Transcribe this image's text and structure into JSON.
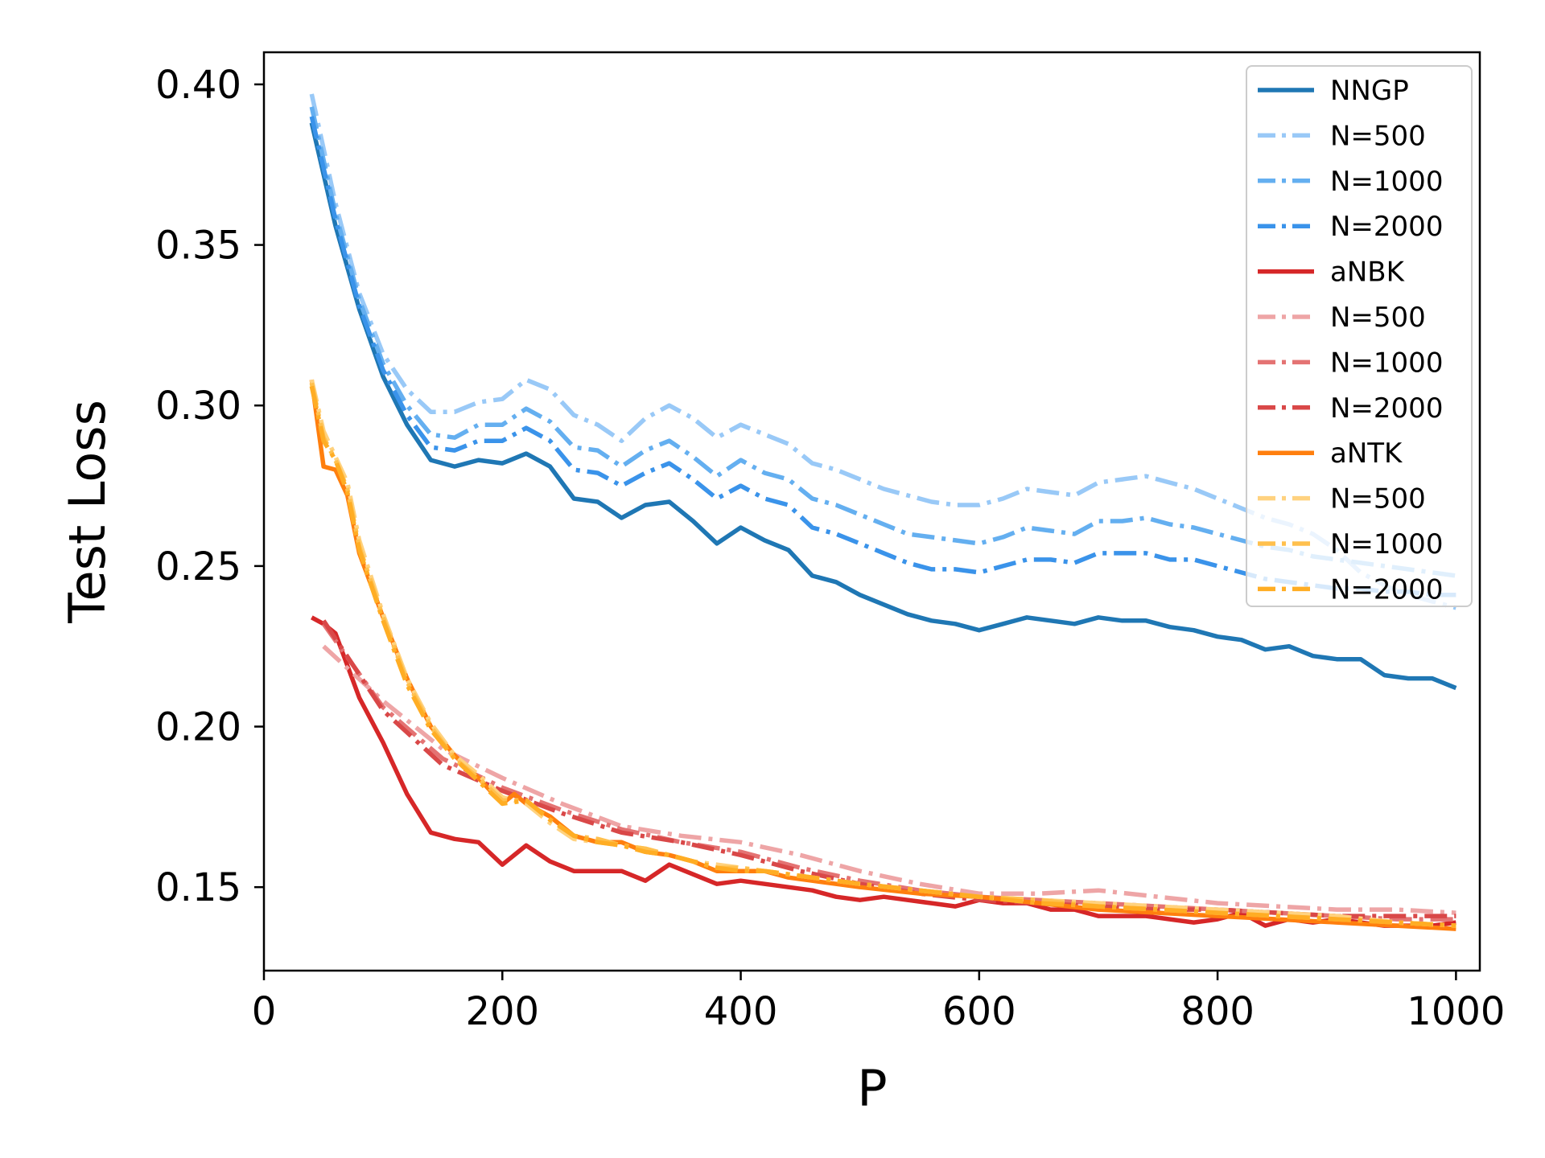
{
  "chart_data": {
    "type": "line",
    "title": "",
    "xlabel": "P",
    "ylabel": "Test Loss",
    "xlim": [
      0,
      1020
    ],
    "ylim": [
      0.124,
      0.41
    ],
    "xticks": [
      {
        "value": 0,
        "label": "0"
      },
      {
        "value": 200,
        "label": "200"
      },
      {
        "value": 400,
        "label": "400"
      },
      {
        "value": 600,
        "label": "600"
      },
      {
        "value": 800,
        "label": "800"
      },
      {
        "value": 1000,
        "label": "1000"
      }
    ],
    "yticks": [
      {
        "value": 0.15,
        "label": "0.15"
      },
      {
        "value": 0.2,
        "label": "0.20"
      },
      {
        "value": 0.25,
        "label": "0.25"
      },
      {
        "value": 0.3,
        "label": "0.30"
      },
      {
        "value": 0.35,
        "label": "0.35"
      },
      {
        "value": 0.4,
        "label": "0.40"
      }
    ],
    "grid": false,
    "legend_position": "top-right",
    "series": [
      {
        "name": "NNGP",
        "color": "#1f77b4",
        "style": "solid",
        "x": [
          40,
          60,
          80,
          100,
          120,
          140,
          160,
          180,
          200,
          220,
          240,
          260,
          280,
          300,
          320,
          340,
          360,
          380,
          400,
          420,
          440,
          460,
          480,
          500,
          520,
          540,
          560,
          580,
          600,
          620,
          640,
          660,
          680,
          700,
          720,
          740,
          760,
          780,
          800,
          820,
          840,
          860,
          880,
          900,
          920,
          940,
          960,
          980,
          1000
        ],
        "y": [
          0.388,
          0.356,
          0.33,
          0.309,
          0.294,
          0.283,
          0.281,
          0.283,
          0.282,
          0.285,
          0.281,
          0.271,
          0.27,
          0.265,
          0.269,
          0.27,
          0.264,
          0.257,
          0.262,
          0.258,
          0.255,
          0.247,
          0.245,
          0.241,
          0.238,
          0.235,
          0.233,
          0.232,
          0.23,
          0.232,
          0.234,
          0.233,
          0.232,
          0.234,
          0.233,
          0.233,
          0.231,
          0.23,
          0.228,
          0.227,
          0.224,
          0.225,
          0.222,
          0.221,
          0.221,
          0.216,
          0.215,
          0.215,
          0.212
        ]
      },
      {
        "name": "N=500",
        "color": "#99c9f7",
        "style": "dashdot",
        "x": [
          40,
          60,
          80,
          100,
          120,
          140,
          160,
          180,
          200,
          220,
          240,
          260,
          280,
          300,
          320,
          340,
          360,
          380,
          400,
          420,
          440,
          460,
          480,
          500,
          520,
          540,
          560,
          580,
          600,
          620,
          640,
          660,
          680,
          700,
          720,
          740,
          760,
          780,
          800,
          820,
          840,
          860,
          880,
          900,
          920,
          940,
          960,
          980,
          1000
        ],
        "y": [
          0.397,
          0.363,
          0.335,
          0.316,
          0.305,
          0.298,
          0.298,
          0.301,
          0.302,
          0.308,
          0.305,
          0.297,
          0.294,
          0.289,
          0.296,
          0.3,
          0.296,
          0.29,
          0.294,
          0.291,
          0.288,
          0.282,
          0.28,
          0.277,
          0.274,
          0.272,
          0.27,
          0.269,
          0.269,
          0.271,
          0.274,
          0.273,
          0.272,
          0.276,
          0.277,
          0.278,
          0.276,
          0.274,
          0.271,
          0.268,
          0.265,
          0.263,
          0.26,
          0.255,
          0.248,
          0.244,
          0.241,
          0.239,
          0.237
        ]
      },
      {
        "name": "N=1000",
        "color": "#64aff0",
        "style": "dashdot",
        "x": [
          40,
          60,
          80,
          100,
          120,
          140,
          160,
          180,
          200,
          220,
          240,
          260,
          280,
          300,
          320,
          340,
          360,
          380,
          400,
          420,
          440,
          460,
          480,
          500,
          520,
          540,
          560,
          580,
          600,
          620,
          640,
          660,
          680,
          700,
          720,
          740,
          760,
          780,
          800,
          820,
          840,
          860,
          880,
          900,
          920,
          940,
          960,
          980,
          1000
        ],
        "y": [
          0.393,
          0.36,
          0.333,
          0.313,
          0.3,
          0.291,
          0.29,
          0.294,
          0.294,
          0.299,
          0.295,
          0.287,
          0.286,
          0.281,
          0.286,
          0.289,
          0.284,
          0.278,
          0.283,
          0.279,
          0.277,
          0.271,
          0.269,
          0.266,
          0.263,
          0.26,
          0.259,
          0.258,
          0.257,
          0.259,
          0.262,
          0.261,
          0.26,
          0.264,
          0.264,
          0.265,
          0.263,
          0.262,
          0.26,
          0.258,
          0.256,
          0.255,
          0.253,
          0.252,
          0.251,
          0.25,
          0.249,
          0.248,
          0.247
        ]
      },
      {
        "name": "N=2000",
        "color": "#3a93ea",
        "style": "dashdot",
        "x": [
          40,
          60,
          80,
          100,
          120,
          140,
          160,
          180,
          200,
          220,
          240,
          260,
          280,
          300,
          320,
          340,
          360,
          380,
          400,
          420,
          440,
          460,
          480,
          500,
          520,
          540,
          560,
          580,
          600,
          620,
          640,
          660,
          680,
          700,
          720,
          740,
          760,
          780,
          800,
          820,
          840,
          860,
          880,
          900,
          920,
          940,
          960,
          980,
          1000
        ],
        "y": [
          0.39,
          0.358,
          0.331,
          0.311,
          0.297,
          0.287,
          0.286,
          0.289,
          0.289,
          0.293,
          0.289,
          0.28,
          0.279,
          0.275,
          0.279,
          0.282,
          0.277,
          0.271,
          0.275,
          0.271,
          0.269,
          0.262,
          0.26,
          0.257,
          0.254,
          0.251,
          0.249,
          0.249,
          0.248,
          0.25,
          0.252,
          0.252,
          0.251,
          0.254,
          0.254,
          0.254,
          0.252,
          0.252,
          0.25,
          0.248,
          0.246,
          0.245,
          0.244,
          0.243,
          0.243,
          0.242,
          0.242,
          0.241,
          0.241
        ]
      },
      {
        "name": "aNBK",
        "color": "#d62728",
        "style": "solid",
        "x": [
          40,
          50,
          60,
          80,
          100,
          120,
          140,
          160,
          180,
          200,
          220,
          240,
          260,
          280,
          300,
          320,
          340,
          360,
          380,
          400,
          420,
          440,
          460,
          480,
          500,
          520,
          540,
          560,
          580,
          600,
          620,
          640,
          660,
          680,
          700,
          720,
          740,
          760,
          780,
          800,
          820,
          840,
          860,
          880,
          900,
          920,
          940,
          960,
          980,
          1000
        ],
        "y": [
          0.234,
          0.232,
          0.229,
          0.209,
          0.195,
          0.179,
          0.167,
          0.165,
          0.164,
          0.157,
          0.163,
          0.158,
          0.155,
          0.155,
          0.155,
          0.152,
          0.157,
          0.154,
          0.151,
          0.152,
          0.151,
          0.15,
          0.149,
          0.147,
          0.146,
          0.147,
          0.146,
          0.145,
          0.144,
          0.146,
          0.145,
          0.145,
          0.143,
          0.143,
          0.141,
          0.141,
          0.141,
          0.14,
          0.139,
          0.14,
          0.142,
          0.138,
          0.14,
          0.139,
          0.14,
          0.139,
          0.138,
          0.138,
          0.138,
          0.139
        ]
      },
      {
        "name": "N=500",
        "color": "#eea5a6",
        "style": "dashdot",
        "x": [
          50,
          100,
          150,
          200,
          250,
          300,
          350,
          400,
          450,
          500,
          550,
          600,
          650,
          700,
          750,
          800,
          850,
          900,
          950,
          1000
        ],
        "y": [
          0.225,
          0.208,
          0.193,
          0.184,
          0.176,
          0.169,
          0.166,
          0.164,
          0.16,
          0.155,
          0.151,
          0.148,
          0.148,
          0.149,
          0.147,
          0.145,
          0.144,
          0.143,
          0.143,
          0.142
        ]
      },
      {
        "name": "N=1000",
        "color": "#e47373",
        "style": "dashdot",
        "x": [
          50,
          100,
          150,
          200,
          250,
          300,
          350,
          400,
          450,
          500,
          550,
          600,
          650,
          700,
          750,
          800,
          850,
          900,
          950,
          1000
        ],
        "y": [
          0.232,
          0.206,
          0.19,
          0.181,
          0.174,
          0.168,
          0.164,
          0.161,
          0.156,
          0.152,
          0.149,
          0.147,
          0.146,
          0.145,
          0.144,
          0.143,
          0.142,
          0.141,
          0.14,
          0.14
        ]
      },
      {
        "name": "N=2000",
        "color": "#d94848",
        "style": "dashdot",
        "x": [
          50,
          100,
          150,
          200,
          250,
          300,
          350,
          400,
          450,
          500,
          550,
          600,
          650,
          700,
          750,
          800,
          850,
          900,
          950,
          1000
        ],
        "y": [
          0.233,
          0.205,
          0.188,
          0.18,
          0.173,
          0.167,
          0.164,
          0.16,
          0.155,
          0.151,
          0.148,
          0.146,
          0.145,
          0.144,
          0.143,
          0.143,
          0.142,
          0.141,
          0.141,
          0.141
        ]
      },
      {
        "name": "aNTK",
        "color": "#ff7f0e",
        "style": "solid",
        "x": [
          40,
          50,
          60,
          70,
          80,
          100,
          120,
          140,
          160,
          180,
          200,
          210,
          220,
          240,
          260,
          280,
          300,
          320,
          340,
          360,
          380,
          400,
          420,
          440,
          460,
          480,
          500,
          550,
          600,
          650,
          700,
          750,
          800,
          850,
          900,
          950,
          1000
        ],
        "y": [
          0.308,
          0.281,
          0.28,
          0.272,
          0.254,
          0.234,
          0.215,
          0.2,
          0.191,
          0.184,
          0.176,
          0.179,
          0.176,
          0.172,
          0.166,
          0.164,
          0.164,
          0.161,
          0.16,
          0.158,
          0.155,
          0.155,
          0.155,
          0.153,
          0.152,
          0.151,
          0.15,
          0.148,
          0.147,
          0.145,
          0.143,
          0.142,
          0.141,
          0.14,
          0.139,
          0.138,
          0.137
        ]
      },
      {
        "name": "N=500",
        "color": "#ffd27f",
        "style": "dashdot",
        "x": [
          40,
          50,
          60,
          70,
          80,
          100,
          120,
          140,
          160,
          180,
          200,
          220,
          240,
          260,
          280,
          300,
          320,
          340,
          360,
          380,
          400,
          420,
          440,
          460,
          480,
          500,
          550,
          600,
          650,
          700,
          750,
          800,
          850,
          900,
          950,
          1000
        ],
        "y": [
          0.308,
          0.292,
          0.284,
          0.276,
          0.258,
          0.235,
          0.215,
          0.201,
          0.191,
          0.185,
          0.178,
          0.176,
          0.17,
          0.165,
          0.164,
          0.163,
          0.162,
          0.16,
          0.158,
          0.157,
          0.156,
          0.155,
          0.154,
          0.153,
          0.152,
          0.151,
          0.149,
          0.147,
          0.146,
          0.145,
          0.144,
          0.143,
          0.142,
          0.141,
          0.139,
          0.138
        ]
      },
      {
        "name": "N=1000",
        "color": "#ffc04d",
        "style": "dashdot",
        "x": [
          40,
          50,
          60,
          70,
          80,
          100,
          120,
          140,
          160,
          180,
          200,
          220,
          240,
          260,
          280,
          300,
          320,
          340,
          360,
          380,
          400,
          420,
          440,
          460,
          480,
          500,
          550,
          600,
          650,
          700,
          750,
          800,
          850,
          900,
          950,
          1000
        ],
        "y": [
          0.307,
          0.29,
          0.283,
          0.274,
          0.256,
          0.234,
          0.214,
          0.2,
          0.19,
          0.184,
          0.177,
          0.177,
          0.171,
          0.166,
          0.165,
          0.163,
          0.162,
          0.16,
          0.158,
          0.156,
          0.156,
          0.155,
          0.154,
          0.153,
          0.152,
          0.151,
          0.149,
          0.147,
          0.146,
          0.144,
          0.143,
          0.142,
          0.141,
          0.14,
          0.139,
          0.138
        ]
      },
      {
        "name": "N=2000",
        "color": "#ffad24",
        "style": "dashdot",
        "x": [
          40,
          50,
          60,
          70,
          80,
          100,
          120,
          140,
          160,
          180,
          200,
          220,
          240,
          260,
          280,
          300,
          320,
          340,
          360,
          380,
          400,
          420,
          440,
          460,
          480,
          500,
          550,
          600,
          650,
          700,
          750,
          800,
          850,
          900,
          950,
          1000
        ],
        "y": [
          0.306,
          0.289,
          0.283,
          0.273,
          0.255,
          0.233,
          0.213,
          0.199,
          0.19,
          0.183,
          0.176,
          0.177,
          0.171,
          0.166,
          0.164,
          0.163,
          0.161,
          0.16,
          0.158,
          0.156,
          0.155,
          0.155,
          0.154,
          0.153,
          0.152,
          0.151,
          0.149,
          0.147,
          0.145,
          0.144,
          0.143,
          0.142,
          0.141,
          0.14,
          0.139,
          0.138
        ]
      }
    ]
  }
}
